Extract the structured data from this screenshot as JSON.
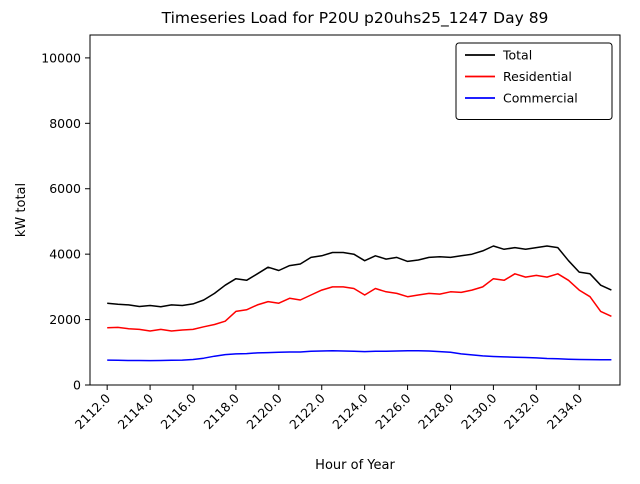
{
  "figure": {
    "background": "#ffffff"
  },
  "chart_data": {
    "type": "line",
    "title": "Timeseries Load for P20U p20uhs25_1247  Day 89",
    "xlabel": "Hour of Year",
    "ylabel": "kW total",
    "xlim": [
      2111.2,
      2135.9
    ],
    "ylim": [
      0,
      10700
    ],
    "yticks": [
      0,
      2000,
      4000,
      6000,
      8000,
      10000
    ],
    "ytick_labels": [
      "0",
      "2000",
      "4000",
      "6000",
      "8000",
      "10000"
    ],
    "xticks": [
      2112,
      2114,
      2116,
      2118,
      2120,
      2122,
      2124,
      2126,
      2128,
      2130,
      2132,
      2134
    ],
    "xtick_labels": [
      "2112.0",
      "2114.0",
      "2116.0",
      "2118.0",
      "2120.0",
      "2122.0",
      "2124.0",
      "2126.0",
      "2128.0",
      "2130.0",
      "2132.0",
      "2134.0"
    ],
    "legend_position": "upper right",
    "grid": false,
    "x": [
      2112.0,
      2112.5,
      2113.0,
      2113.5,
      2114.0,
      2114.5,
      2115.0,
      2115.5,
      2116.0,
      2116.5,
      2117.0,
      2117.5,
      2118.0,
      2118.5,
      2119.0,
      2119.5,
      2120.0,
      2120.5,
      2121.0,
      2121.5,
      2122.0,
      2122.5,
      2123.0,
      2123.5,
      2124.0,
      2124.5,
      2125.0,
      2125.5,
      2126.0,
      2126.5,
      2127.0,
      2127.5,
      2128.0,
      2128.5,
      2129.0,
      2129.5,
      2130.0,
      2130.5,
      2131.0,
      2131.5,
      2132.0,
      2132.5,
      2133.0,
      2133.5,
      2134.0,
      2134.5,
      2135.0,
      2135.5
    ],
    "series": [
      {
        "name": "Total",
        "color": "#000000",
        "values": [
          2500,
          2470,
          2450,
          2400,
          2430,
          2390,
          2450,
          2430,
          2480,
          2600,
          2800,
          3050,
          3250,
          3200,
          3400,
          3600,
          3500,
          3650,
          3700,
          3900,
          3950,
          4050,
          4050,
          4000,
          3800,
          3950,
          3850,
          3900,
          3780,
          3820,
          3900,
          3920,
          3900,
          3950,
          4000,
          4100,
          4250,
          4150,
          4200,
          4150,
          4200,
          4250,
          4200,
          3800,
          3450,
          3400,
          3050,
          2900
        ]
      },
      {
        "name": "Residential",
        "color": "#ff0000",
        "values": [
          1750,
          1760,
          1720,
          1700,
          1650,
          1700,
          1650,
          1680,
          1700,
          1780,
          1850,
          1950,
          2250,
          2300,
          2450,
          2550,
          2500,
          2650,
          2600,
          2750,
          2900,
          3000,
          3000,
          2950,
          2750,
          2950,
          2850,
          2800,
          2700,
          2750,
          2800,
          2780,
          2850,
          2830,
          2900,
          3000,
          3250,
          3200,
          3400,
          3300,
          3350,
          3300,
          3400,
          3200,
          2900,
          2700,
          2250,
          2100
        ]
      },
      {
        "name": "Commercial",
        "color": "#0000ff",
        "values": [
          760,
          755,
          750,
          750,
          745,
          750,
          755,
          760,
          780,
          820,
          880,
          930,
          950,
          960,
          980,
          990,
          1000,
          1010,
          1010,
          1030,
          1040,
          1050,
          1040,
          1030,
          1020,
          1030,
          1030,
          1040,
          1050,
          1050,
          1040,
          1020,
          1000,
          950,
          920,
          890,
          870,
          860,
          850,
          840,
          830,
          810,
          800,
          790,
          780,
          775,
          770,
          770
        ]
      }
    ]
  }
}
